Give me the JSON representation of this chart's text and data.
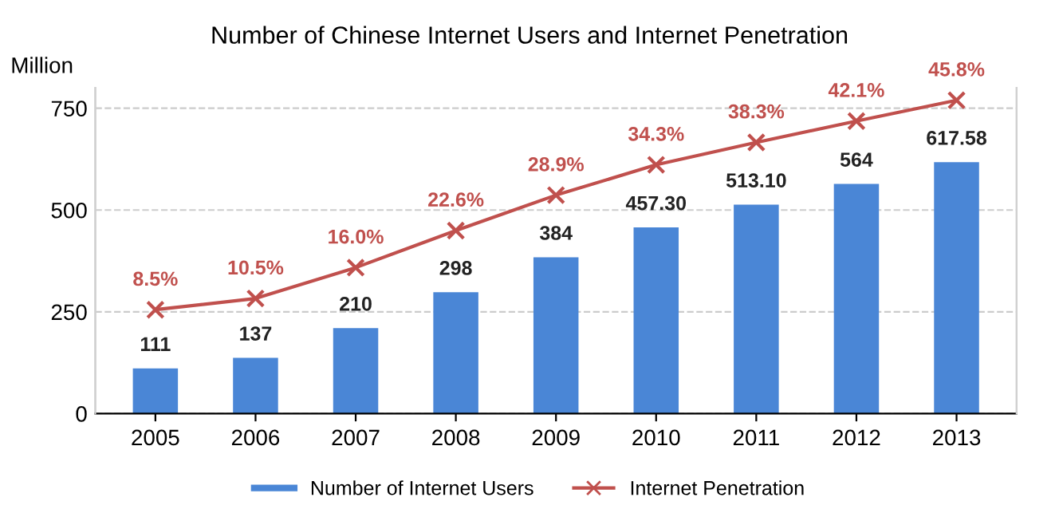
{
  "chart_data": {
    "type": "bar",
    "title": "Number of Chinese Internet Users and Internet Penetration",
    "ylabel": "Million",
    "categories": [
      "2005",
      "2006",
      "2007",
      "2008",
      "2009",
      "2010",
      "2011",
      "2012",
      "2013"
    ],
    "series": [
      {
        "name": "Number of Internet Users",
        "color": "#4a86d6",
        "values": [
          111,
          137,
          210,
          298,
          384,
          457.3,
          513.1,
          564,
          617.58
        ],
        "value_labels": [
          "111",
          "137",
          "210",
          "298",
          "384",
          "457.30",
          "513.10",
          "564",
          "617.58"
        ]
      },
      {
        "name": "Internet Penetration",
        "type": "line",
        "axis": "y2",
        "color": "#c0504d",
        "marker": "cross",
        "values": [
          8.5,
          10.5,
          16.0,
          22.6,
          28.9,
          34.3,
          38.3,
          42.1,
          45.8
        ],
        "value_labels": [
          "8.5%",
          "10.5%",
          "16.0%",
          "22.6%",
          "28.9%",
          "34.3%",
          "38.3%",
          "42.1%",
          "45.8%"
        ]
      }
    ],
    "ylim": [
      0,
      800
    ],
    "yticks": [
      0,
      250,
      500,
      750
    ],
    "y2lim": [
      -10,
      48
    ],
    "tick_labels": [
      "x",
      "y"
    ],
    "grid": "y",
    "legend": "bottom"
  }
}
